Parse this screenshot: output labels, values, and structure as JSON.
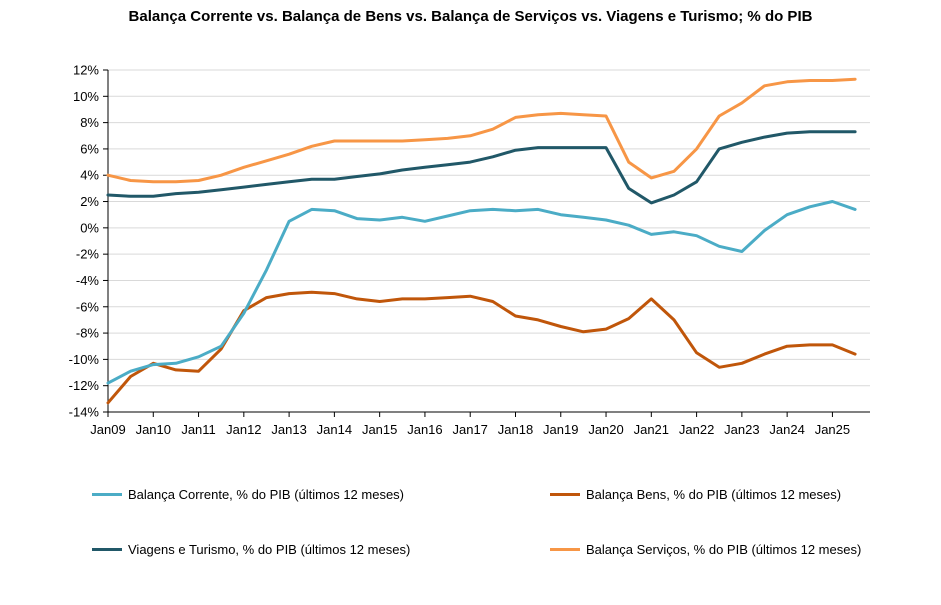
{
  "chart_data": {
    "type": "line",
    "title": "Balança Corrente vs. Balança de Bens vs. Balança de Serviços vs. Viagens e Turismo; % do PIB",
    "xlabel": "",
    "ylabel": "",
    "x_tick_labels": [
      "Jan09",
      "Jan10",
      "Jan11",
      "Jan12",
      "Jan13",
      "Jan14",
      "Jan15",
      "Jan16",
      "Jan17",
      "Jan18",
      "Jan19",
      "Jan20",
      "Jan21",
      "Jan22",
      "Jan23",
      "Jan24",
      "Jan25"
    ],
    "y_tick_labels": [
      "12%",
      "10%",
      "8%",
      "6%",
      "4%",
      "2%",
      "0%",
      "-2%",
      "-4%",
      "-6%",
      "-8%",
      "-10%",
      "-12%",
      "-14%"
    ],
    "ylim": [
      -14,
      12
    ],
    "xlim": [
      2009.0,
      2025.83
    ],
    "grid": true,
    "legend_position": "bottom",
    "x": [
      2009.0,
      2009.5,
      2010.0,
      2010.5,
      2011.0,
      2011.5,
      2012.0,
      2012.5,
      2013.0,
      2013.5,
      2014.0,
      2014.5,
      2015.0,
      2015.5,
      2016.0,
      2016.5,
      2017.0,
      2017.5,
      2018.0,
      2018.5,
      2019.0,
      2019.5,
      2020.0,
      2020.5,
      2021.0,
      2021.5,
      2022.0,
      2022.5,
      2023.0,
      2023.5,
      2024.0,
      2024.5,
      2025.0,
      2025.5
    ],
    "series": [
      {
        "name": "Balança Corrente,  % do PIB (últimos 12 meses)",
        "color": "#4bacc6",
        "values": [
          -11.8,
          -10.9,
          -10.4,
          -10.3,
          -9.8,
          -9.0,
          -6.5,
          -3.2,
          0.5,
          1.4,
          1.3,
          0.7,
          0.6,
          0.8,
          0.5,
          0.9,
          1.3,
          1.4,
          1.3,
          1.4,
          1.0,
          0.8,
          0.6,
          0.2,
          -0.5,
          -0.3,
          -0.6,
          -1.4,
          -1.8,
          -0.2,
          1.0,
          1.6,
          2.0,
          1.4
        ]
      },
      {
        "name": "Balança Bens,  % do PIB (últimos 12 meses)",
        "color": "#c0560a",
        "values": [
          -13.3,
          -11.3,
          -10.3,
          -10.8,
          -10.9,
          -9.2,
          -6.3,
          -5.3,
          -5.0,
          -4.9,
          -5.0,
          -5.4,
          -5.6,
          -5.4,
          -5.4,
          -5.3,
          -5.2,
          -5.6,
          -6.7,
          -7.0,
          -7.5,
          -7.9,
          -7.7,
          -6.9,
          -5.4,
          -7.0,
          -9.5,
          -10.6,
          -10.3,
          -9.6,
          -9.0,
          -8.9,
          -8.9,
          -9.6
        ]
      },
      {
        "name": "Viagens e Turismo,  % do PIB (últimos 12 meses)",
        "color": "#215868",
        "values": [
          2.5,
          2.4,
          2.4,
          2.6,
          2.7,
          2.9,
          3.1,
          3.3,
          3.5,
          3.7,
          3.7,
          3.9,
          4.1,
          4.4,
          4.6,
          4.8,
          5.0,
          5.4,
          5.9,
          6.1,
          6.1,
          6.1,
          6.1,
          3.0,
          1.9,
          2.5,
          3.5,
          6.0,
          6.5,
          6.9,
          7.2,
          7.3,
          7.3,
          7.3
        ]
      },
      {
        "name": "Balança Serviços,  % do PIB (últimos 12 meses)",
        "color": "#f79646",
        "values": [
          4.0,
          3.6,
          3.5,
          3.5,
          3.6,
          4.0,
          4.6,
          5.1,
          5.6,
          6.2,
          6.6,
          6.6,
          6.6,
          6.6,
          6.7,
          6.8,
          7.0,
          7.5,
          8.4,
          8.6,
          8.7,
          8.6,
          8.5,
          5.0,
          3.8,
          4.3,
          6.0,
          8.5,
          9.5,
          10.8,
          11.1,
          11.2,
          11.2,
          11.3
        ]
      }
    ]
  }
}
